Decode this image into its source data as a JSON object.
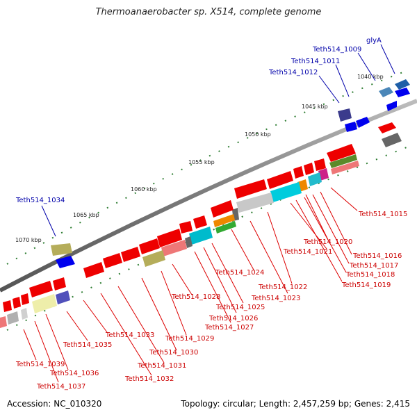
{
  "title": "Thermoanaerobacter sp. X514, complete genome",
  "footer": {
    "accession": "Accession: NC_010320",
    "topology": "Topology: circular; Length: 2,457,259 bp; Genes: 2,415"
  },
  "colors": {
    "backbone": "#8a8a8a",
    "tick": "#2e7d32",
    "feature_label": "#cc0000",
    "highlight_label": "#0000aa"
  },
  "kbp_labels": [
    "1040 kbp",
    "1045 kbp",
    "1050 kbp",
    "1055 kbp",
    "1060 kbp",
    "1065 kbp",
    "1070 kbp"
  ],
  "blue_labels": [
    "glyA",
    "Teth514_1009",
    "Teth514_1011",
    "Teth514_1012",
    "Teth514_1034"
  ],
  "red_labels": [
    "Teth514_1015",
    "Teth514_1016",
    "Teth514_1017",
    "Teth514_1018",
    "Teth514_1019",
    "Teth514_1020",
    "Teth514_1021",
    "Teth514_1022",
    "Teth514_1023",
    "Teth514_1024",
    "Teth514_1025",
    "Teth514_1026",
    "Teth514_1027",
    "Teth514_1028",
    "Teth514_1029",
    "Teth514_1030",
    "Teth514_1031",
    "Teth514_1032",
    "Teth514_1033",
    "Teth514_1035",
    "Teth514_1036",
    "Teth514_1037",
    "Teth514_1039"
  ]
}
